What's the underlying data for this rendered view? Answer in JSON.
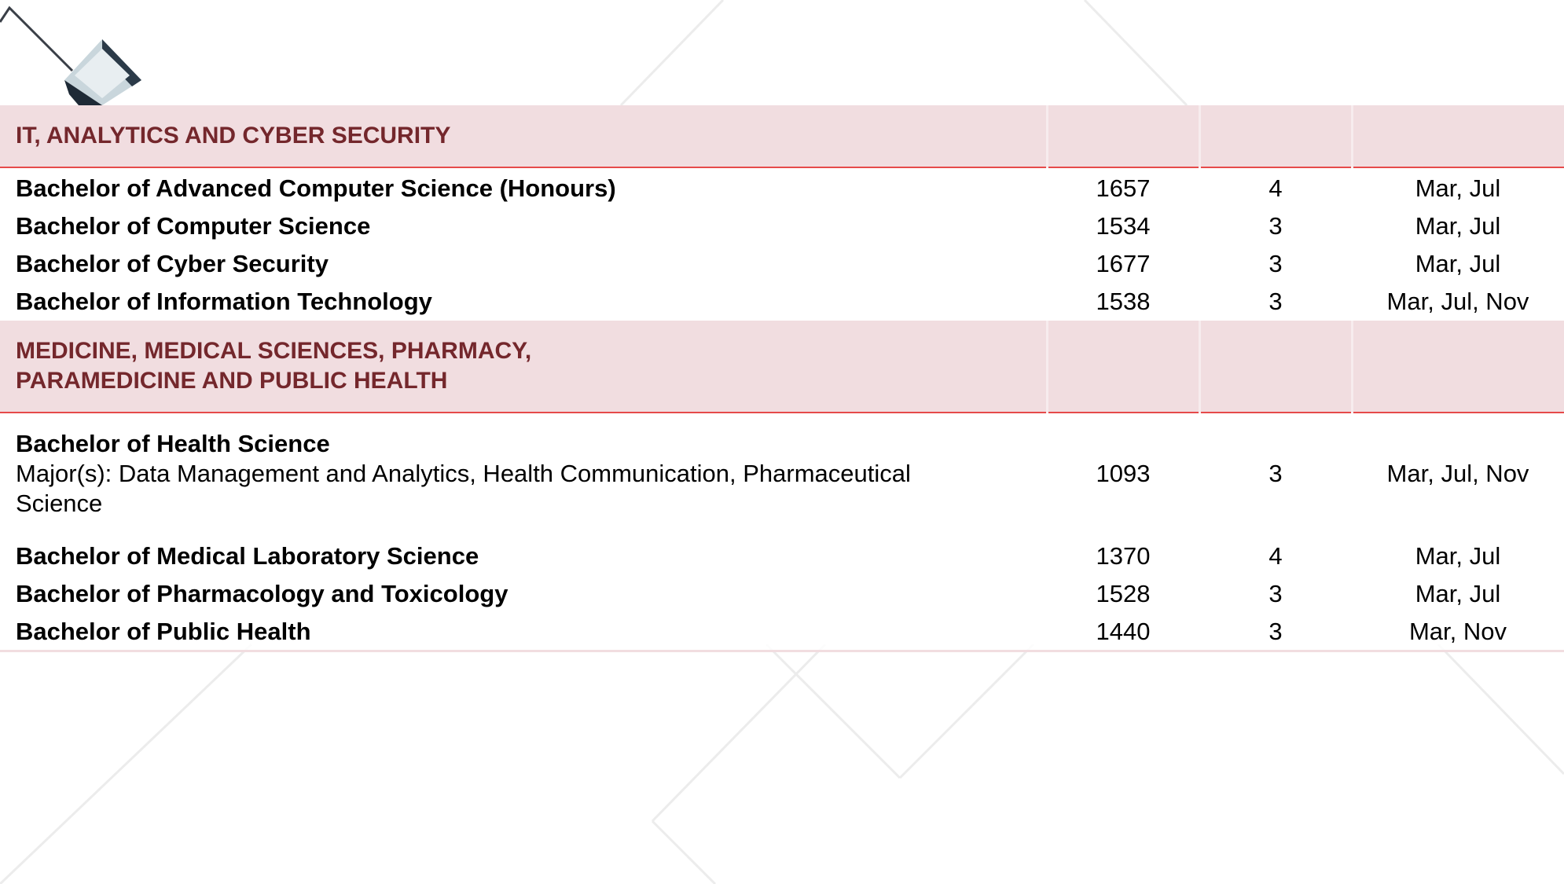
{
  "sections": [
    {
      "heading_line1": "IT, ANALYTICS AND CYBER SECURITY",
      "heading_line2": "",
      "courses": [
        {
          "name": "Bachelor of Advanced Computer Science (Honours)",
          "code": "1657",
          "years": "4",
          "intake": "Mar, Jul"
        },
        {
          "name": "Bachelor of Computer Science",
          "code": "1534",
          "years": "3",
          "intake": "Mar, Jul"
        },
        {
          "name": "Bachelor of Cyber Security",
          "code": "1677",
          "years": "3",
          "intake": "Mar, Jul"
        },
        {
          "name": "Bachelor of Information Technology",
          "code": "1538",
          "years": "3",
          "intake": "Mar, Jul, Nov"
        }
      ]
    },
    {
      "heading_line1": "MEDICINE, MEDICAL SCIENCES, PHARMACY,",
      "heading_line2": "PARAMEDICINE AND PUBLIC HEALTH",
      "courses": [
        {
          "name": "Bachelor of Health Science",
          "majors": "Major(s): Data Management and Analytics, Health Communication, Pharmaceutical Science",
          "code": "1093",
          "years": "3",
          "intake": "Mar, Jul, Nov"
        },
        {
          "name": "Bachelor of Medical Laboratory Science",
          "code": "1370",
          "years": "4",
          "intake": "Mar, Jul"
        },
        {
          "name": "Bachelor of Pharmacology and Toxicology",
          "code": "1528",
          "years": "3",
          "intake": "Mar, Jul"
        },
        {
          "name": "Bachelor of Public Health",
          "code": "1440",
          "years": "3",
          "intake": "Mar, Nov"
        }
      ]
    }
  ],
  "colors": {
    "section_bg": "#f1dde0",
    "section_text": "#74272c",
    "accent_line": "#e64a4a"
  }
}
